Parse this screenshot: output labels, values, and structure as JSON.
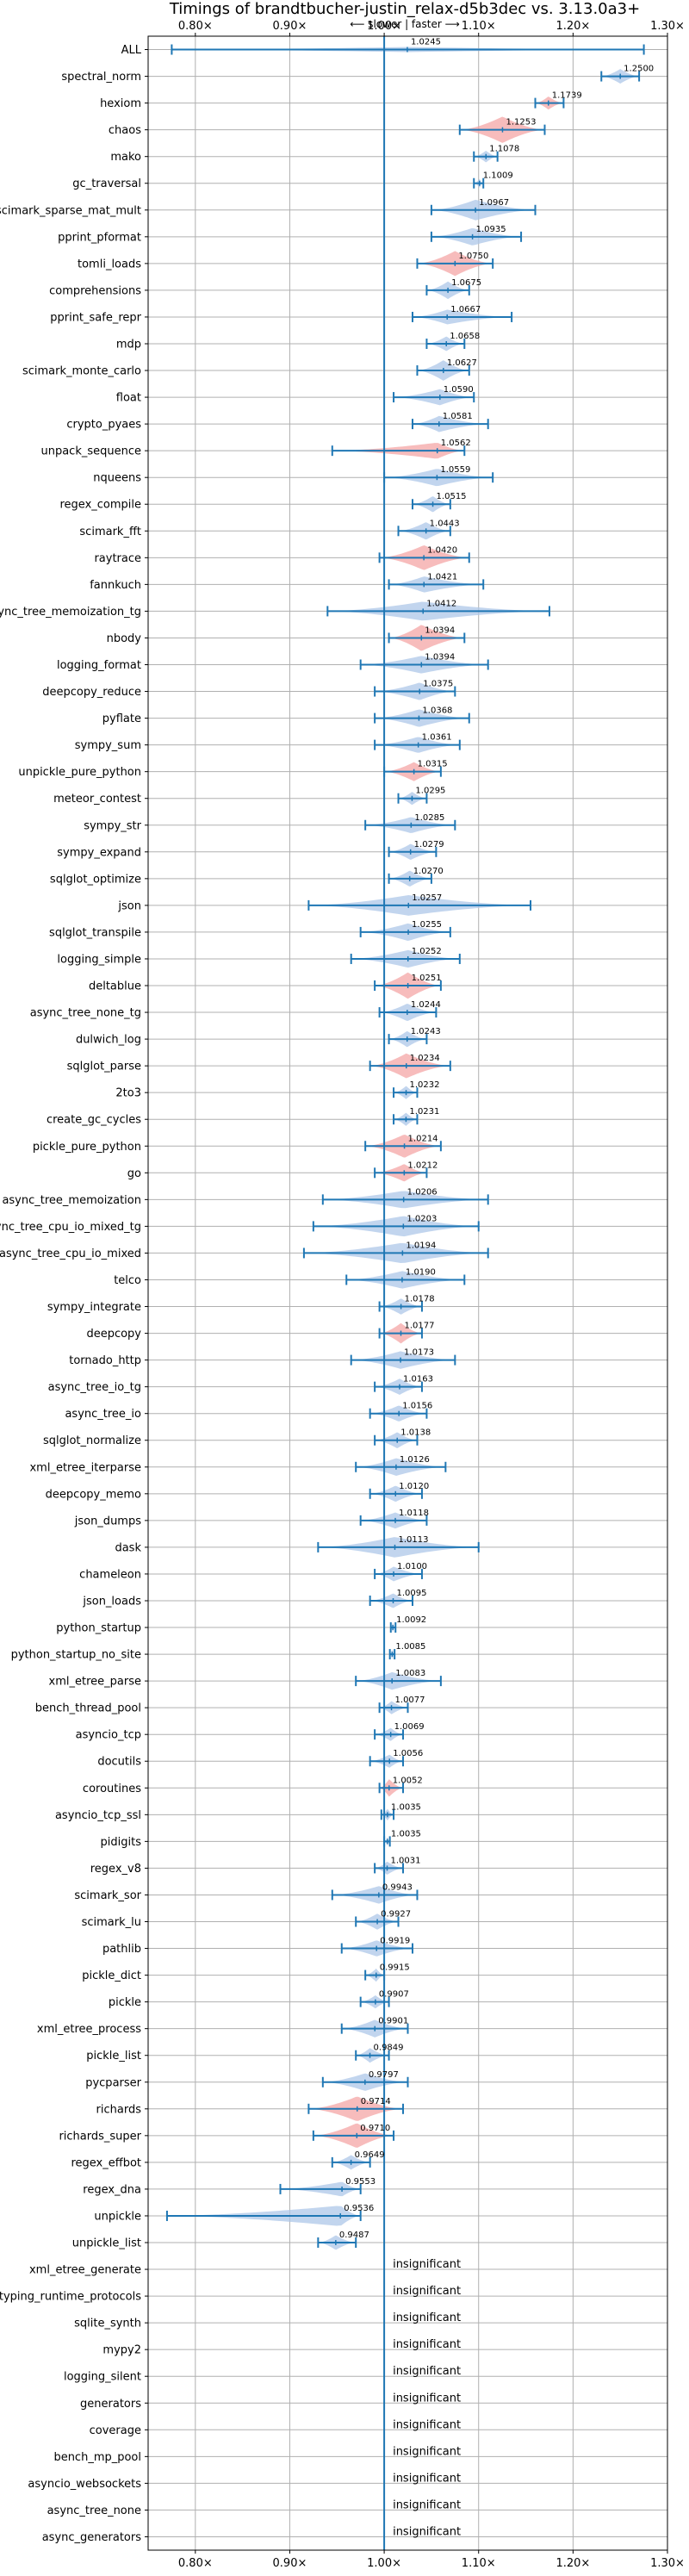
{
  "chart_data": {
    "type": "violin",
    "title": "Timings of brandtbucher-justin_relax-d5b3dec vs. 3.13.0a3+",
    "subtitle": "⟵ slower | faster ⟶",
    "xlabel": "",
    "ylabel": "",
    "xlim": [
      0.75,
      1.3
    ],
    "xticks": [
      "0.80×",
      "0.90×",
      "1.00×",
      "1.10×",
      "1.20×",
      "1.30×"
    ],
    "xtick_values": [
      0.8,
      0.9,
      1.0,
      1.1,
      1.2,
      1.3
    ],
    "grid": true,
    "colors": {
      "faster": "#aec7e8",
      "slower": "#f4a6a6",
      "line": "#1f77b4"
    },
    "insignificant_label": "insignificant",
    "benchmarks": [
      {
        "name": "ALL",
        "value": 1.0245,
        "label": "1.0245",
        "lo": 0.775,
        "hi": 1.275,
        "width": 0.08,
        "color": "faster"
      },
      {
        "name": "spectral_norm",
        "value": 1.25,
        "label": "1.2500",
        "lo": 1.23,
        "hi": 1.27,
        "width": 0.5,
        "color": "faster"
      },
      {
        "name": "hexiom",
        "value": 1.1739,
        "label": "1.1739",
        "lo": 1.16,
        "hi": 1.19,
        "width": 0.45,
        "color": "slower"
      },
      {
        "name": "chaos",
        "value": 1.1253,
        "label": "1.1253",
        "lo": 1.08,
        "hi": 1.17,
        "width": 0.9,
        "color": "slower"
      },
      {
        "name": "mako",
        "value": 1.1078,
        "label": "1.1078",
        "lo": 1.095,
        "hi": 1.12,
        "width": 0.4,
        "color": "faster"
      },
      {
        "name": "gc_traversal",
        "value": 1.1009,
        "label": "1.1009",
        "lo": 1.095,
        "hi": 1.105,
        "width": 0.3,
        "color": "faster"
      },
      {
        "name": "scimark_sparse_mat_mult",
        "value": 1.0967,
        "label": "1.0967",
        "lo": 1.05,
        "hi": 1.16,
        "width": 0.7,
        "color": "faster"
      },
      {
        "name": "pprint_pformat",
        "value": 1.0935,
        "label": "1.0935",
        "lo": 1.05,
        "hi": 1.145,
        "width": 0.6,
        "color": "faster"
      },
      {
        "name": "tomli_loads",
        "value": 1.075,
        "label": "1.0750",
        "lo": 1.035,
        "hi": 1.115,
        "width": 0.85,
        "color": "slower"
      },
      {
        "name": "comprehensions",
        "value": 1.0675,
        "label": "1.0675",
        "lo": 1.045,
        "hi": 1.09,
        "width": 0.6,
        "color": "faster"
      },
      {
        "name": "pprint_safe_repr",
        "value": 1.0667,
        "label": "1.0667",
        "lo": 1.03,
        "hi": 1.135,
        "width": 0.5,
        "color": "faster"
      },
      {
        "name": "mdp",
        "value": 1.0658,
        "label": "1.0658",
        "lo": 1.045,
        "hi": 1.085,
        "width": 0.5,
        "color": "faster"
      },
      {
        "name": "scimark_monte_carlo",
        "value": 1.0627,
        "label": "1.0627",
        "lo": 1.035,
        "hi": 1.09,
        "width": 0.7,
        "color": "faster"
      },
      {
        "name": "float",
        "value": 1.059,
        "label": "1.0590",
        "lo": 1.01,
        "hi": 1.095,
        "width": 0.55,
        "color": "faster"
      },
      {
        "name": "crypto_pyaes",
        "value": 1.0581,
        "label": "1.0581",
        "lo": 1.03,
        "hi": 1.11,
        "width": 0.55,
        "color": "faster"
      },
      {
        "name": "unpack_sequence",
        "value": 1.0562,
        "label": "1.0562",
        "lo": 0.945,
        "hi": 1.085,
        "width": 0.55,
        "color": "slower"
      },
      {
        "name": "nqueens",
        "value": 1.0559,
        "label": "1.0559",
        "lo": 1.0,
        "hi": 1.115,
        "width": 0.6,
        "color": "faster"
      },
      {
        "name": "regex_compile",
        "value": 1.0515,
        "label": "1.0515",
        "lo": 1.03,
        "hi": 1.07,
        "width": 0.55,
        "color": "faster"
      },
      {
        "name": "scimark_fft",
        "value": 1.0443,
        "label": "1.0443",
        "lo": 1.015,
        "hi": 1.07,
        "width": 0.6,
        "color": "faster"
      },
      {
        "name": "raytrace",
        "value": 1.042,
        "label": "1.0420",
        "lo": 0.995,
        "hi": 1.09,
        "width": 0.85,
        "color": "slower"
      },
      {
        "name": "fannkuch",
        "value": 1.0421,
        "label": "1.0421",
        "lo": 1.005,
        "hi": 1.105,
        "width": 0.55,
        "color": "faster"
      },
      {
        "name": "async_tree_memoization_tg",
        "value": 1.0412,
        "label": "1.0412",
        "lo": 0.94,
        "hi": 1.175,
        "width": 0.65,
        "color": "faster"
      },
      {
        "name": "nbody",
        "value": 1.0394,
        "label": "1.0394",
        "lo": 1.005,
        "hi": 1.085,
        "width": 0.9,
        "color": "slower"
      },
      {
        "name": "logging_format",
        "value": 1.0394,
        "label": "1.0394",
        "lo": 0.975,
        "hi": 1.11,
        "width": 0.6,
        "color": "faster"
      },
      {
        "name": "deepcopy_reduce",
        "value": 1.0375,
        "label": "1.0375",
        "lo": 0.99,
        "hi": 1.075,
        "width": 0.6,
        "color": "faster"
      },
      {
        "name": "pyflate",
        "value": 1.0368,
        "label": "1.0368",
        "lo": 0.99,
        "hi": 1.09,
        "width": 0.6,
        "color": "faster"
      },
      {
        "name": "sympy_sum",
        "value": 1.0361,
        "label": "1.0361",
        "lo": 0.99,
        "hi": 1.08,
        "width": 0.55,
        "color": "faster"
      },
      {
        "name": "unpickle_pure_python",
        "value": 1.0315,
        "label": "1.0315",
        "lo": 1.0,
        "hi": 1.06,
        "width": 0.65,
        "color": "slower"
      },
      {
        "name": "meteor_contest",
        "value": 1.0295,
        "label": "1.0295",
        "lo": 1.015,
        "hi": 1.045,
        "width": 0.45,
        "color": "faster"
      },
      {
        "name": "sympy_str",
        "value": 1.0285,
        "label": "1.0285",
        "lo": 0.98,
        "hi": 1.075,
        "width": 0.55,
        "color": "faster"
      },
      {
        "name": "sympy_expand",
        "value": 1.0279,
        "label": "1.0279",
        "lo": 1.005,
        "hi": 1.055,
        "width": 0.55,
        "color": "faster"
      },
      {
        "name": "sqlglot_optimize",
        "value": 1.027,
        "label": "1.0270",
        "lo": 1.005,
        "hi": 1.05,
        "width": 0.55,
        "color": "faster"
      },
      {
        "name": "json",
        "value": 1.0257,
        "label": "1.0257",
        "lo": 0.92,
        "hi": 1.155,
        "width": 0.7,
        "color": "faster"
      },
      {
        "name": "sqlglot_transpile",
        "value": 1.0255,
        "label": "1.0255",
        "lo": 0.975,
        "hi": 1.07,
        "width": 0.6,
        "color": "faster"
      },
      {
        "name": "logging_simple",
        "value": 1.0252,
        "label": "1.0252",
        "lo": 0.965,
        "hi": 1.08,
        "width": 0.6,
        "color": "faster"
      },
      {
        "name": "deltablue",
        "value": 1.0251,
        "label": "1.0251",
        "lo": 0.99,
        "hi": 1.06,
        "width": 0.9,
        "color": "slower"
      },
      {
        "name": "async_tree_none_tg",
        "value": 1.0244,
        "label": "1.0244",
        "lo": 0.995,
        "hi": 1.055,
        "width": 0.6,
        "color": "faster"
      },
      {
        "name": "dulwich_log",
        "value": 1.0243,
        "label": "1.0243",
        "lo": 1.005,
        "hi": 1.045,
        "width": 0.55,
        "color": "faster"
      },
      {
        "name": "sqlglot_parse",
        "value": 1.0234,
        "label": "1.0234",
        "lo": 0.985,
        "hi": 1.07,
        "width": 0.85,
        "color": "slower"
      },
      {
        "name": "2to3",
        "value": 1.0232,
        "label": "1.0232",
        "lo": 1.01,
        "hi": 1.035,
        "width": 0.45,
        "color": "faster"
      },
      {
        "name": "create_gc_cycles",
        "value": 1.0231,
        "label": "1.0231",
        "lo": 1.01,
        "hi": 1.035,
        "width": 0.45,
        "color": "faster"
      },
      {
        "name": "pickle_pure_python",
        "value": 1.0214,
        "label": "1.0214",
        "lo": 0.98,
        "hi": 1.06,
        "width": 0.8,
        "color": "slower"
      },
      {
        "name": "go",
        "value": 1.0212,
        "label": "1.0212",
        "lo": 0.99,
        "hi": 1.045,
        "width": 0.6,
        "color": "slower"
      },
      {
        "name": "async_tree_memoization",
        "value": 1.0206,
        "label": "1.0206",
        "lo": 0.935,
        "hi": 1.11,
        "width": 0.6,
        "color": "faster"
      },
      {
        "name": "async_tree_cpu_io_mixed_tg",
        "value": 1.0203,
        "label": "1.0203",
        "lo": 0.925,
        "hi": 1.1,
        "width": 0.7,
        "color": "faster"
      },
      {
        "name": "async_tree_cpu_io_mixed",
        "value": 1.0194,
        "label": "1.0194",
        "lo": 0.915,
        "hi": 1.11,
        "width": 0.7,
        "color": "faster"
      },
      {
        "name": "telco",
        "value": 1.019,
        "label": "1.0190",
        "lo": 0.96,
        "hi": 1.085,
        "width": 0.6,
        "color": "faster"
      },
      {
        "name": "sympy_integrate",
        "value": 1.0178,
        "label": "1.0178",
        "lo": 0.995,
        "hi": 1.04,
        "width": 0.55,
        "color": "faster"
      },
      {
        "name": "deepcopy",
        "value": 1.0177,
        "label": "1.0177",
        "lo": 0.995,
        "hi": 1.04,
        "width": 0.7,
        "color": "slower"
      },
      {
        "name": "tornado_http",
        "value": 1.0173,
        "label": "1.0173",
        "lo": 0.965,
        "hi": 1.075,
        "width": 0.6,
        "color": "faster"
      },
      {
        "name": "async_tree_io_tg",
        "value": 1.0163,
        "label": "1.0163",
        "lo": 0.99,
        "hi": 1.04,
        "width": 0.55,
        "color": "faster"
      },
      {
        "name": "async_tree_io",
        "value": 1.0156,
        "label": "1.0156",
        "lo": 0.985,
        "hi": 1.045,
        "width": 0.55,
        "color": "faster"
      },
      {
        "name": "sqlglot_normalize",
        "value": 1.0138,
        "label": "1.0138",
        "lo": 0.99,
        "hi": 1.035,
        "width": 0.55,
        "color": "faster"
      },
      {
        "name": "xml_etree_iterparse",
        "value": 1.0126,
        "label": "1.0126",
        "lo": 0.97,
        "hi": 1.065,
        "width": 0.6,
        "color": "faster"
      },
      {
        "name": "deepcopy_memo",
        "value": 1.012,
        "label": "1.0120",
        "lo": 0.985,
        "hi": 1.04,
        "width": 0.55,
        "color": "faster"
      },
      {
        "name": "json_dumps",
        "value": 1.0118,
        "label": "1.0118",
        "lo": 0.975,
        "hi": 1.045,
        "width": 0.55,
        "color": "faster"
      },
      {
        "name": "dask",
        "value": 1.0113,
        "label": "1.0113",
        "lo": 0.93,
        "hi": 1.1,
        "width": 0.7,
        "color": "faster"
      },
      {
        "name": "chameleon",
        "value": 1.01,
        "label": "1.0100",
        "lo": 0.99,
        "hi": 1.04,
        "width": 0.5,
        "color": "faster"
      },
      {
        "name": "json_loads",
        "value": 1.0095,
        "label": "1.0095",
        "lo": 0.985,
        "hi": 1.03,
        "width": 0.5,
        "color": "faster"
      },
      {
        "name": "python_startup",
        "value": 1.0092,
        "label": "1.0092",
        "lo": 1.007,
        "hi": 1.012,
        "width": 0.35,
        "color": "faster"
      },
      {
        "name": "python_startup_no_site",
        "value": 1.0085,
        "label": "1.0085",
        "lo": 1.006,
        "hi": 1.011,
        "width": 0.35,
        "color": "faster"
      },
      {
        "name": "xml_etree_parse",
        "value": 1.0083,
        "label": "1.0083",
        "lo": 0.97,
        "hi": 1.06,
        "width": 0.6,
        "color": "faster"
      },
      {
        "name": "bench_thread_pool",
        "value": 1.0077,
        "label": "1.0077",
        "lo": 0.995,
        "hi": 1.025,
        "width": 0.45,
        "color": "faster"
      },
      {
        "name": "asyncio_tcp",
        "value": 1.0069,
        "label": "1.0069",
        "lo": 0.99,
        "hi": 1.02,
        "width": 0.45,
        "color": "faster"
      },
      {
        "name": "docutils",
        "value": 1.0056,
        "label": "1.0056",
        "lo": 0.985,
        "hi": 1.02,
        "width": 0.45,
        "color": "faster"
      },
      {
        "name": "coroutines",
        "value": 1.0052,
        "label": "1.0052",
        "lo": 0.995,
        "hi": 1.02,
        "width": 0.6,
        "color": "slower"
      },
      {
        "name": "asyncio_tcp_ssl",
        "value": 1.0035,
        "label": "1.0035",
        "lo": 0.997,
        "hi": 1.01,
        "width": 0.4,
        "color": "faster"
      },
      {
        "name": "pidigits",
        "value": 1.0035,
        "label": "1.0035",
        "lo": 1.0,
        "hi": 1.006,
        "width": 0.3,
        "color": "faster"
      },
      {
        "name": "regex_v8",
        "value": 1.0031,
        "label": "1.0031",
        "lo": 0.99,
        "hi": 1.02,
        "width": 0.45,
        "color": "faster"
      },
      {
        "name": "scimark_sor",
        "value": 0.9943,
        "label": "0.9943",
        "lo": 0.945,
        "hi": 1.035,
        "width": 0.6,
        "color": "faster"
      },
      {
        "name": "scimark_lu",
        "value": 0.9927,
        "label": "0.9927",
        "lo": 0.97,
        "hi": 1.015,
        "width": 0.55,
        "color": "faster"
      },
      {
        "name": "pathlib",
        "value": 0.9919,
        "label": "0.9919",
        "lo": 0.955,
        "hi": 1.03,
        "width": 0.55,
        "color": "faster"
      },
      {
        "name": "pickle_dict",
        "value": 0.9915,
        "label": "0.9915",
        "lo": 0.98,
        "hi": 1.0,
        "width": 0.45,
        "color": "faster"
      },
      {
        "name": "pickle",
        "value": 0.9907,
        "label": "0.9907",
        "lo": 0.975,
        "hi": 1.005,
        "width": 0.45,
        "color": "faster"
      },
      {
        "name": "xml_etree_process",
        "value": 0.9901,
        "label": "0.9901",
        "lo": 0.955,
        "hi": 1.025,
        "width": 0.6,
        "color": "faster"
      },
      {
        "name": "pickle_list",
        "value": 0.9849,
        "label": "0.9849",
        "lo": 0.97,
        "hi": 1.005,
        "width": 0.5,
        "color": "faster"
      },
      {
        "name": "pycparser",
        "value": 0.9797,
        "label": "0.9797",
        "lo": 0.935,
        "hi": 1.025,
        "width": 0.6,
        "color": "faster"
      },
      {
        "name": "richards",
        "value": 0.9714,
        "label": "0.9714",
        "lo": 0.92,
        "hi": 1.02,
        "width": 0.85,
        "color": "slower"
      },
      {
        "name": "richards_super",
        "value": 0.971,
        "label": "0.9710",
        "lo": 0.925,
        "hi": 1.01,
        "width": 0.85,
        "color": "slower"
      },
      {
        "name": "regex_effbot",
        "value": 0.9649,
        "label": "0.9649",
        "lo": 0.945,
        "hi": 0.985,
        "width": 0.5,
        "color": "faster"
      },
      {
        "name": "regex_dna",
        "value": 0.9553,
        "label": "0.9553",
        "lo": 0.89,
        "hi": 0.975,
        "width": 0.5,
        "color": "faster"
      },
      {
        "name": "unpickle",
        "value": 0.9536,
        "label": "0.9536",
        "lo": 0.77,
        "hi": 0.975,
        "width": 0.7,
        "color": "faster"
      },
      {
        "name": "unpickle_list",
        "value": 0.9487,
        "label": "0.9487",
        "lo": 0.93,
        "hi": 0.97,
        "width": 0.5,
        "color": "faster"
      },
      {
        "name": "xml_etree_generate",
        "insignificant": true
      },
      {
        "name": "typing_runtime_protocols",
        "insignificant": true
      },
      {
        "name": "sqlite_synth",
        "insignificant": true
      },
      {
        "name": "mypy2",
        "insignificant": true
      },
      {
        "name": "logging_silent",
        "insignificant": true
      },
      {
        "name": "generators",
        "insignificant": true
      },
      {
        "name": "coverage",
        "insignificant": true
      },
      {
        "name": "bench_mp_pool",
        "insignificant": true
      },
      {
        "name": "asyncio_websockets",
        "insignificant": true
      },
      {
        "name": "async_tree_none",
        "insignificant": true
      },
      {
        "name": "async_generators",
        "insignificant": true
      }
    ]
  }
}
